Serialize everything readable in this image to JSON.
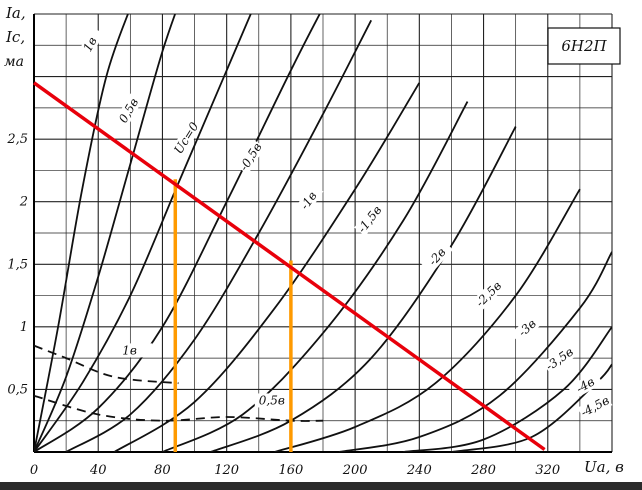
{
  "chart_data": {
    "type": "line",
    "title": "6Н2П",
    "xlabel": "Uа, в",
    "ylabel": [
      "Iа,",
      "Iс,",
      "ма"
    ],
    "xlim": [
      0,
      360
    ],
    "ylim": [
      0,
      3.5
    ],
    "grid": true,
    "x_ticks": [
      "0",
      "40",
      "80",
      "120",
      "160",
      "200",
      "240",
      "280",
      "320"
    ],
    "x_tick_values": [
      0,
      40,
      80,
      120,
      160,
      200,
      240,
      280,
      320
    ],
    "y_ticks": [
      "0,5",
      "1",
      "1,5",
      "2",
      "2,5"
    ],
    "y_tick_values": [
      0.5,
      1,
      1.5,
      2,
      2.5
    ],
    "series": [
      {
        "name": "1в",
        "x": [
          0,
          15,
          30,
          45,
          60
        ],
        "y": [
          0,
          1.0,
          2.1,
          3.0,
          3.55
        ]
      },
      {
        "name": "0,5в",
        "x": [
          0,
          20,
          40,
          60,
          80,
          95
        ],
        "y": [
          0,
          0.6,
          1.4,
          2.3,
          3.2,
          3.75
        ]
      },
      {
        "name": "Uс=0",
        "x": [
          0,
          30,
          60,
          90,
          120,
          140
        ],
        "y": [
          0,
          0.55,
          1.25,
          2.15,
          3.05,
          3.65
        ]
      },
      {
        "name": "-0,5в",
        "x": [
          0,
          40,
          80,
          120,
          160,
          180
        ],
        "y": [
          0,
          0.35,
          1.0,
          2.0,
          3.05,
          3.55
        ]
      },
      {
        "name": "-1в",
        "x": [
          20,
          60,
          100,
          140,
          180,
          210
        ],
        "y": [
          0,
          0.3,
          0.9,
          1.75,
          2.7,
          3.45
        ]
      },
      {
        "name": "-1,5в",
        "x": [
          50,
          100,
          150,
          200,
          240
        ],
        "y": [
          0,
          0.4,
          1.15,
          2.1,
          2.95
        ]
      },
      {
        "name": "-2в",
        "x": [
          80,
          130,
          180,
          230,
          270
        ],
        "y": [
          0,
          0.3,
          0.95,
          1.85,
          2.8
        ]
      },
      {
        "name": "-2,5в",
        "x": [
          110,
          160,
          210,
          260,
          300
        ],
        "y": [
          0,
          0.25,
          0.75,
          1.65,
          2.6
        ]
      },
      {
        "name": "-3в",
        "x": [
          150,
          200,
          250,
          300,
          340
        ],
        "y": [
          0,
          0.2,
          0.55,
          1.25,
          2.1
        ]
      },
      {
        "name": "-3,5в",
        "x": [
          190,
          240,
          290,
          340,
          360
        ],
        "y": [
          0,
          0.12,
          0.45,
          1.15,
          1.6
        ]
      },
      {
        "name": "-4в",
        "x": [
          230,
          280,
          330,
          360
        ],
        "y": [
          0,
          0.1,
          0.5,
          1.0
        ]
      },
      {
        "name": "-4,5в",
        "x": [
          260,
          310,
          350,
          360
        ],
        "y": [
          0,
          0.12,
          0.55,
          0.7
        ]
      }
    ],
    "grid_current_curves": [
      {
        "name": "1в",
        "x": [
          0,
          20,
          50,
          90
        ],
        "y": [
          0.85,
          0.75,
          0.6,
          0.55
        ]
      },
      {
        "name": "0,5в",
        "x": [
          0,
          40,
          80,
          120,
          160,
          180
        ],
        "y": [
          0.45,
          0.3,
          0.25,
          0.28,
          0.25,
          0.25
        ]
      }
    ],
    "load_line": {
      "color": "#e8000b",
      "x": [
        0,
        318
      ],
      "y": [
        2.95,
        0.02
      ]
    },
    "operating_points": {
      "color": "#ff9a00",
      "points": [
        {
          "x": 88,
          "y": 2.18
        },
        {
          "x": 160,
          "y": 1.53
        }
      ]
    },
    "curve_color": "#111111",
    "grid_color": "#222222"
  }
}
